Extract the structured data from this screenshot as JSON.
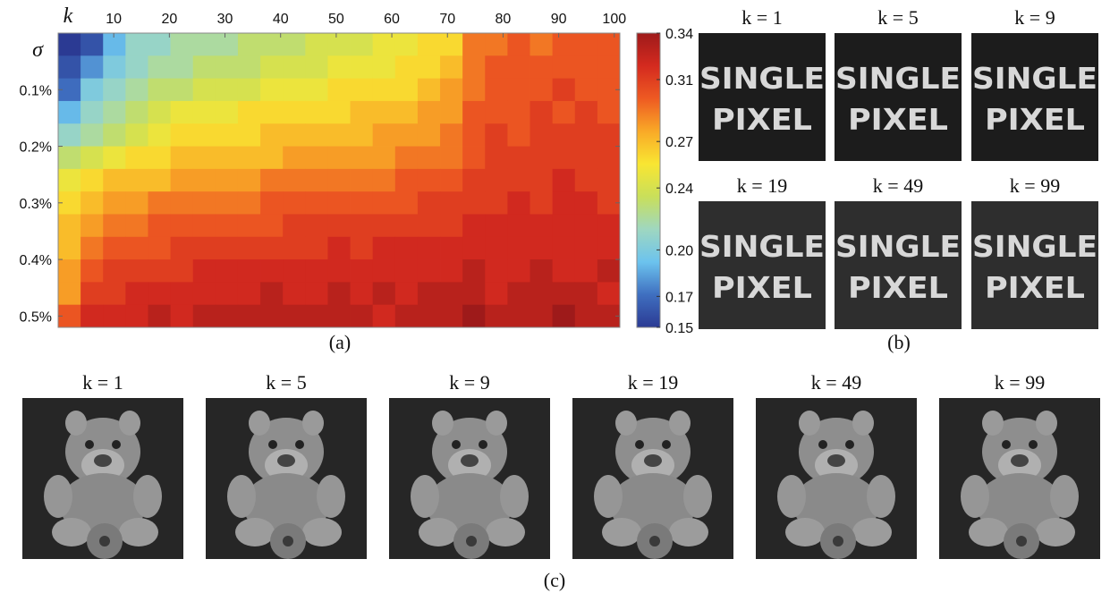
{
  "chart_data": {
    "type": "heatmap",
    "x_label": "k",
    "y_label": "σ",
    "caption": "(a)",
    "xlim": [
      0,
      101
    ],
    "ylim": [
      0,
      0.52
    ],
    "xticks": [
      10,
      20,
      30,
      40,
      50,
      60,
      70,
      80,
      90,
      100
    ],
    "yticks": [
      {
        "value": 0.1,
        "label": "0.1%"
      },
      {
        "value": 0.2,
        "label": "0.2%"
      },
      {
        "value": 0.3,
        "label": "0.3%"
      },
      {
        "value": 0.4,
        "label": "0.4%"
      },
      {
        "value": 0.5,
        "label": "0.5%"
      }
    ],
    "colormap": [
      "#2b3a93",
      "#3f6fc0",
      "#6cc3ee",
      "#9fd7c0",
      "#c9df5a",
      "#f9e632",
      "#f9a927",
      "#ee5a22",
      "#d42a1f",
      "#9e1a1a"
    ],
    "colorbar": {
      "lim": [
        0.15,
        0.34
      ],
      "ticks": [
        0.15,
        0.17,
        {
          "value": 0.2,
          "label": "0.20"
        },
        0.24,
        0.27,
        0.31,
        0.34
      ]
    },
    "values": [
      [
        0.15,
        0.16,
        0.19,
        0.21,
        0.21,
        0.22,
        0.22,
        0.22,
        0.23,
        0.23,
        0.23,
        0.24,
        0.24,
        0.24,
        0.25,
        0.25,
        0.26,
        0.26,
        0.29,
        0.29,
        0.3,
        0.29,
        0.3,
        0.3,
        0.3
      ],
      [
        0.16,
        0.18,
        0.2,
        0.21,
        0.22,
        0.22,
        0.23,
        0.23,
        0.23,
        0.24,
        0.24,
        0.24,
        0.25,
        0.25,
        0.25,
        0.26,
        0.26,
        0.27,
        0.29,
        0.3,
        0.3,
        0.3,
        0.3,
        0.3,
        0.3
      ],
      [
        0.17,
        0.2,
        0.21,
        0.22,
        0.23,
        0.23,
        0.24,
        0.24,
        0.24,
        0.25,
        0.25,
        0.25,
        0.26,
        0.26,
        0.26,
        0.26,
        0.27,
        0.28,
        0.29,
        0.3,
        0.3,
        0.3,
        0.31,
        0.3,
        0.3
      ],
      [
        0.19,
        0.21,
        0.22,
        0.23,
        0.24,
        0.25,
        0.25,
        0.25,
        0.26,
        0.26,
        0.26,
        0.26,
        0.26,
        0.27,
        0.27,
        0.27,
        0.28,
        0.28,
        0.3,
        0.3,
        0.3,
        0.31,
        0.3,
        0.31,
        0.3
      ],
      [
        0.21,
        0.22,
        0.23,
        0.24,
        0.25,
        0.26,
        0.26,
        0.26,
        0.26,
        0.27,
        0.27,
        0.27,
        0.27,
        0.27,
        0.28,
        0.28,
        0.28,
        0.29,
        0.3,
        0.31,
        0.3,
        0.31,
        0.31,
        0.31,
        0.31
      ],
      [
        0.23,
        0.24,
        0.25,
        0.26,
        0.26,
        0.27,
        0.27,
        0.27,
        0.27,
        0.27,
        0.28,
        0.28,
        0.28,
        0.28,
        0.28,
        0.29,
        0.29,
        0.29,
        0.3,
        0.31,
        0.31,
        0.31,
        0.31,
        0.31,
        0.31
      ],
      [
        0.25,
        0.26,
        0.27,
        0.27,
        0.27,
        0.28,
        0.28,
        0.28,
        0.28,
        0.29,
        0.29,
        0.29,
        0.29,
        0.29,
        0.29,
        0.3,
        0.3,
        0.3,
        0.31,
        0.31,
        0.31,
        0.31,
        0.32,
        0.31,
        0.31
      ],
      [
        0.26,
        0.27,
        0.28,
        0.28,
        0.29,
        0.29,
        0.29,
        0.29,
        0.29,
        0.3,
        0.3,
        0.3,
        0.3,
        0.3,
        0.3,
        0.3,
        0.31,
        0.31,
        0.31,
        0.31,
        0.32,
        0.31,
        0.32,
        0.32,
        0.31
      ],
      [
        0.27,
        0.28,
        0.29,
        0.29,
        0.3,
        0.3,
        0.3,
        0.3,
        0.3,
        0.3,
        0.31,
        0.31,
        0.31,
        0.31,
        0.31,
        0.31,
        0.31,
        0.31,
        0.32,
        0.32,
        0.32,
        0.32,
        0.32,
        0.32,
        0.32
      ],
      [
        0.27,
        0.29,
        0.3,
        0.3,
        0.3,
        0.31,
        0.31,
        0.31,
        0.31,
        0.31,
        0.31,
        0.31,
        0.32,
        0.31,
        0.32,
        0.32,
        0.32,
        0.32,
        0.32,
        0.32,
        0.32,
        0.32,
        0.32,
        0.32,
        0.32
      ],
      [
        0.28,
        0.3,
        0.31,
        0.31,
        0.31,
        0.31,
        0.32,
        0.32,
        0.32,
        0.32,
        0.32,
        0.32,
        0.32,
        0.32,
        0.32,
        0.32,
        0.32,
        0.32,
        0.33,
        0.32,
        0.32,
        0.33,
        0.32,
        0.32,
        0.33
      ],
      [
        0.28,
        0.31,
        0.31,
        0.32,
        0.32,
        0.32,
        0.32,
        0.32,
        0.32,
        0.33,
        0.32,
        0.32,
        0.33,
        0.32,
        0.33,
        0.32,
        0.33,
        0.33,
        0.33,
        0.32,
        0.33,
        0.33,
        0.33,
        0.33,
        0.32
      ],
      [
        0.3,
        0.32,
        0.32,
        0.32,
        0.33,
        0.32,
        0.33,
        0.33,
        0.33,
        0.33,
        0.33,
        0.33,
        0.33,
        0.33,
        0.32,
        0.33,
        0.33,
        0.33,
        0.34,
        0.33,
        0.33,
        0.33,
        0.34,
        0.33,
        0.33
      ]
    ]
  },
  "panel_b": {
    "caption": "(b)",
    "images": [
      {
        "title": "k = 1",
        "text_lines": [
          "SINGLE",
          "PIXEL"
        ]
      },
      {
        "title": "k = 5",
        "text_lines": [
          "SINGLE",
          "PIXEL"
        ]
      },
      {
        "title": "k = 9",
        "text_lines": [
          "SINGLE",
          "PIXEL"
        ]
      },
      {
        "title": "k = 19",
        "text_lines": [
          "SINGLE",
          "PIXEL"
        ]
      },
      {
        "title": "k = 49",
        "text_lines": [
          "SINGLE",
          "PIXEL"
        ]
      },
      {
        "title": "k = 99",
        "text_lines": [
          "SINGLE",
          "PIXEL"
        ]
      }
    ]
  },
  "panel_c": {
    "caption": "(c)",
    "images": [
      {
        "title": "k = 1"
      },
      {
        "title": "k = 5"
      },
      {
        "title": "k = 9"
      },
      {
        "title": "k = 19"
      },
      {
        "title": "k = 49"
      },
      {
        "title": "k = 99"
      }
    ]
  }
}
